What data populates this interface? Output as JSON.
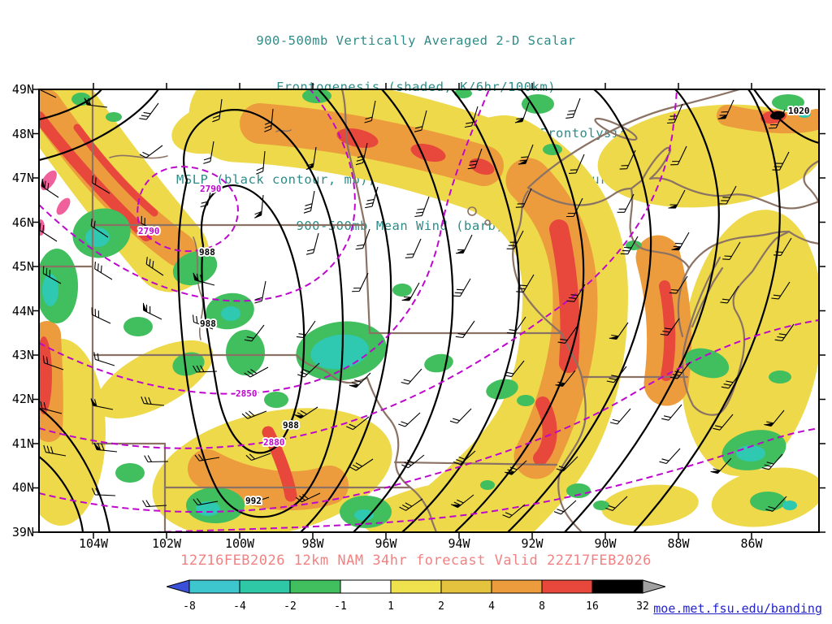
{
  "title_lines": [
    "900-500mb Vertically Averaged 2-D Scalar",
    "Frontogenesis (shaded, K/6hr/100km)",
    "Yellow/Red = Frontogenesis;  Green/Blue = Frontolysis",
    "MSLP (black contour, mb), 700mb height (purple contour, m) &",
    "900-500mb Mean Wind (barb, kt)"
  ],
  "axes": {
    "lat_labels": [
      "49N",
      "48N",
      "47N",
      "46N",
      "45N",
      "44N",
      "43N",
      "42N",
      "41N",
      "40N",
      "39N"
    ],
    "lon_labels": [
      "104W",
      "102W",
      "100W",
      "98W",
      "96W",
      "94W",
      "92W",
      "90W",
      "88W",
      "86W"
    ]
  },
  "contour_labels": {
    "mslp": [
      "988",
      "988",
      "988",
      "992",
      "1020"
    ],
    "height": [
      "2790",
      "2790",
      "2850",
      "2880"
    ]
  },
  "footer": {
    "caption": "12Z16FEB2026 12km NAM 34hr forecast Valid 22Z17FEB2026",
    "credit": "moe.met.fsu.edu/banding"
  },
  "colorbar": {
    "tick_labels": [
      "-8",
      "-4",
      "-2",
      "-1",
      "1",
      "2",
      "4",
      "8",
      "16",
      "32"
    ],
    "segment_colors": [
      "#3EC6CE",
      "#2FC8A6",
      "#41BE5E",
      "#FFFFFF",
      "#F0E14E",
      "#E4C33F",
      "#EC9C3D",
      "#E8483C",
      "#000000"
    ],
    "left_arrow_color": "#3A50D8",
    "right_arrow_color": "#A0A0A0"
  },
  "colors": {
    "title": "#2E8B87",
    "caption": "#F28282",
    "credit_link": "#2323CC",
    "map_border": "#000000",
    "state_border": "#8A7264",
    "mslp_contour": "#000000",
    "height_contour": "#BE07CE",
    "wind_barb": "#000000",
    "shade_yellow": "#EDD94A",
    "shade_orange": "#EC9C3D",
    "shade_red": "#E8483C",
    "shade_pink": "#F0609A",
    "shade_green": "#41BE5E",
    "shade_teal": "#2FC8B0"
  },
  "chart_data": {
    "type": "heatmap",
    "title": "900-500mb Vertically Averaged 2-D Scalar Frontogenesis",
    "subtitle": "Yellow/Red = Frontogenesis; Green/Blue = Frontolysis",
    "units": "K/6hr/100km",
    "x_axis": {
      "label": "Longitude",
      "ticks": [
        "104W",
        "102W",
        "100W",
        "98W",
        "96W",
        "94W",
        "92W",
        "90W",
        "88W",
        "86W"
      ]
    },
    "y_axis": {
      "label": "Latitude",
      "ticks": [
        "49N",
        "48N",
        "47N",
        "46N",
        "45N",
        "44N",
        "43N",
        "42N",
        "41N",
        "40N",
        "39N"
      ]
    },
    "color_scale": {
      "boundaries": [
        -8,
        -4,
        -2,
        -1,
        1,
        2,
        4,
        8,
        16,
        32
      ],
      "colors": [
        "#3EC6CE",
        "#2FC8A6",
        "#41BE5E",
        "#FFFFFF",
        "#F0E14E",
        "#E4C33F",
        "#EC9C3D",
        "#E8483C",
        "#000000"
      ],
      "below_color": "#3A50D8",
      "above_color": "#A0A0A0"
    },
    "overlays": [
      {
        "name": "MSLP",
        "style": "solid black contour",
        "units": "mb",
        "labeled_values": [
          988,
          992,
          1020
        ]
      },
      {
        "name": "700mb geopotential height",
        "style": "dashed purple contour",
        "units": "m",
        "labeled_values": [
          2790,
          2850,
          2880
        ]
      },
      {
        "name": "900-500mb mean wind",
        "style": "wind barbs",
        "units": "kt"
      }
    ],
    "model": "12km NAM",
    "init": "12Z16FEB2026",
    "forecast_hour": 34,
    "valid": "22Z17FEB2026",
    "region": "Upper Midwest United States"
  }
}
